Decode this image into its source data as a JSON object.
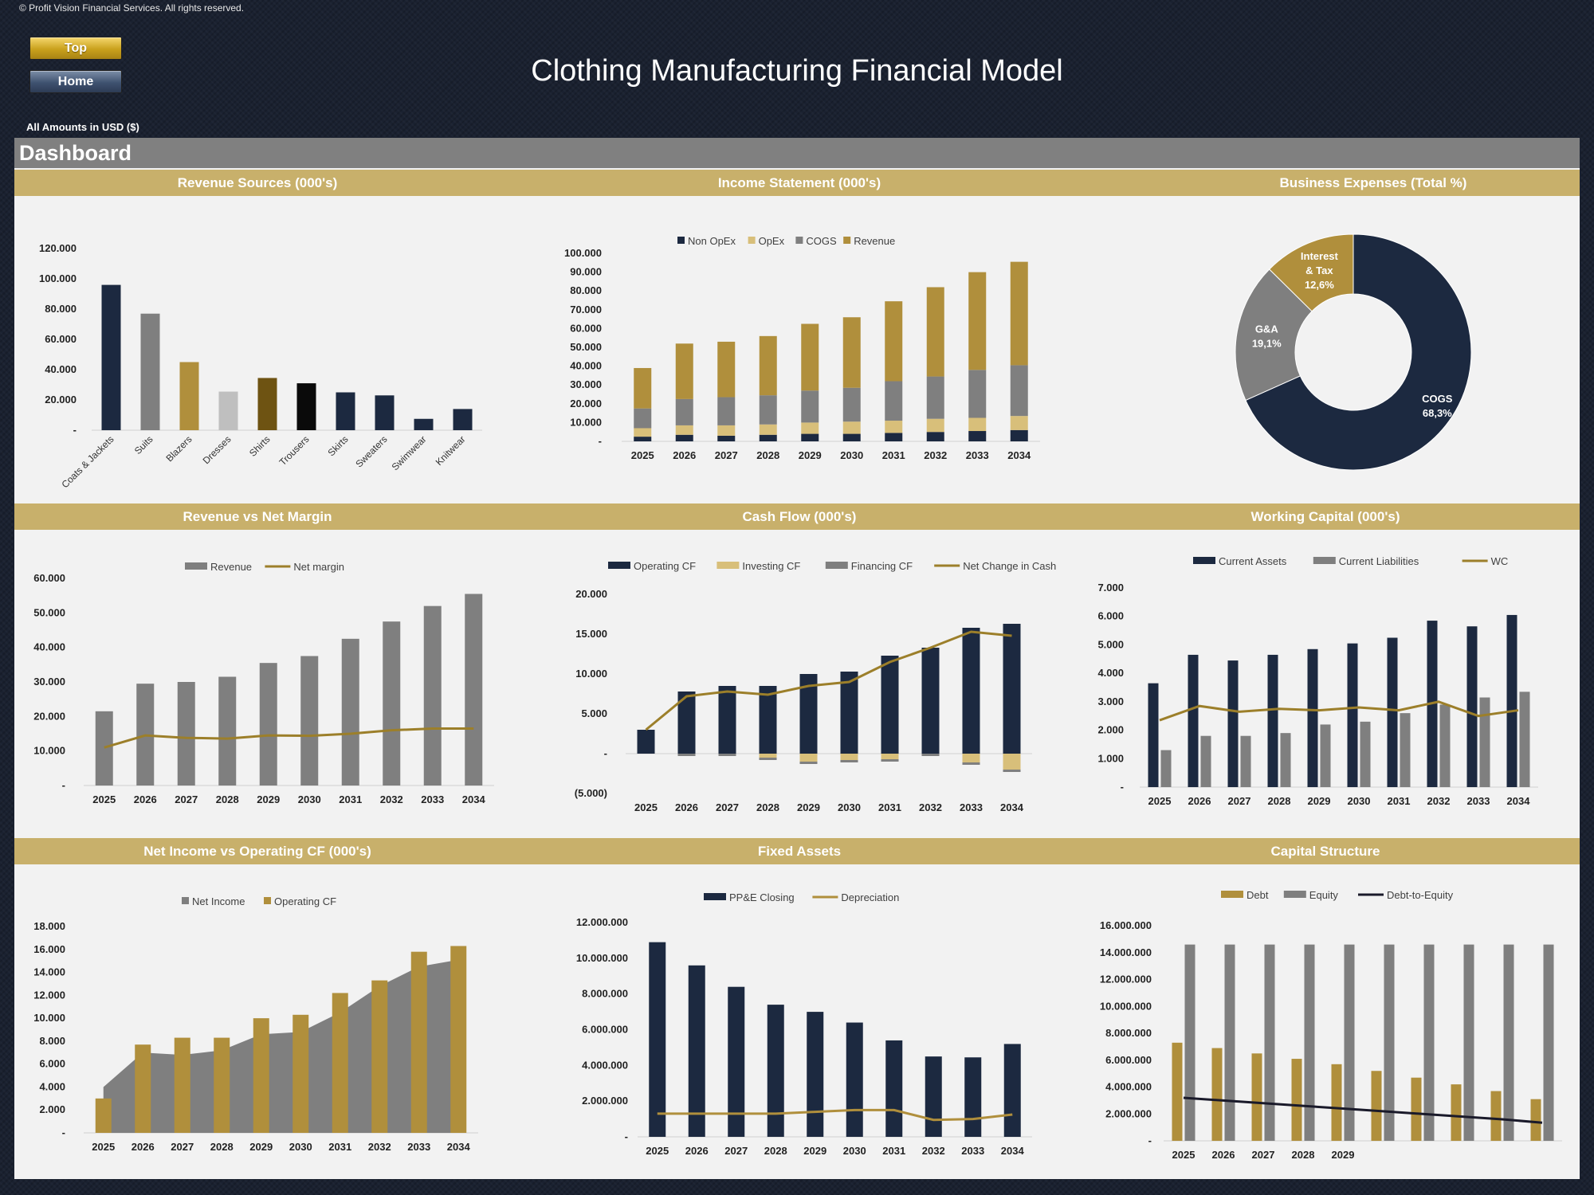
{
  "header": {
    "copyright": "© Profit Vision Financial Services. All rights reserved.",
    "top_button": "Top",
    "home_button": "Home",
    "title": "Clothing Manufacturing Financial Model",
    "units": "All Amounts in  USD ($)",
    "dashboard_label": "Dashboard"
  },
  "colors": {
    "navy": "#1c2940",
    "gold": "#b08f3c",
    "gray": "#7f7f7f",
    "lightgold": "#d8bf7a",
    "black": "#0a0a0a",
    "silver": "#bfbfbf",
    "brown": "#6e5312",
    "banner": "#c8b06b"
  },
  "chart_data": [
    {
      "id": "revenue_sources",
      "type": "bar",
      "title": "Revenue Sources (000's)",
      "categories": [
        "Coats & Jackets",
        "Suits",
        "Blazers",
        "Dresses",
        "Shirts",
        "Trousers",
        "Skirts",
        "Sweaters",
        "Swimwear",
        "Knitwear"
      ],
      "values": [
        96000,
        77000,
        45000,
        25500,
        34500,
        31000,
        25000,
        23000,
        7500,
        14000
      ],
      "bar_colors": [
        "#1c2940",
        "#7f7f7f",
        "#b08f3c",
        "#bfbfbf",
        "#6e5312",
        "#0a0a0a",
        "#1c2940",
        "#1c2940",
        "#1c2940",
        "#1c2940"
      ],
      "ylim": [
        0,
        120000
      ],
      "yticks": [
        "-",
        "20.000",
        "40.000",
        "60.000",
        "80.000",
        "100.000",
        "120.000"
      ]
    },
    {
      "id": "income_statement",
      "type": "bar",
      "stacked": true,
      "title": "Income Statement (000's)",
      "categories": [
        "2025",
        "2026",
        "2027",
        "2028",
        "2029",
        "2030",
        "2031",
        "2032",
        "2033",
        "2034"
      ],
      "series": [
        {
          "name": "Non OpEx",
          "color": "#1c2940",
          "values": [
            2500,
            3500,
            3000,
            3500,
            4000,
            4000,
            4500,
            5000,
            5500,
            6000
          ]
        },
        {
          "name": "OpEx",
          "color": "#d8bf7a",
          "values": [
            4500,
            5000,
            5500,
            5500,
            6000,
            6500,
            6500,
            7000,
            7000,
            7500
          ]
        },
        {
          "name": "COGS",
          "color": "#7f7f7f",
          "values": [
            10500,
            14000,
            15000,
            15500,
            17000,
            18000,
            21000,
            22500,
            25500,
            27000
          ]
        },
        {
          "name": "Revenue",
          "color": "#b08f3c",
          "values": [
            21500,
            29500,
            29500,
            31500,
            35500,
            37500,
            42500,
            47500,
            52000,
            55000
          ]
        }
      ],
      "ylim": [
        0,
        100000
      ],
      "yticks": [
        "-",
        "10.000",
        "20.000",
        "30.000",
        "40.000",
        "50.000",
        "60.000",
        "70.000",
        "80.000",
        "90.000",
        "100.000"
      ]
    },
    {
      "id": "business_expenses",
      "type": "pie",
      "donut": true,
      "title": "Business Expenses (Total %)",
      "slices": [
        {
          "name": "COGS",
          "value": 68.3,
          "label": "68,3%",
          "color": "#1c2940"
        },
        {
          "name": "G&A",
          "value": 19.1,
          "label": "19,1%",
          "color": "#7f7f7f"
        },
        {
          "name": "Interest & Tax",
          "value": 12.6,
          "label": "12,6%",
          "color": "#b08f3c"
        }
      ]
    },
    {
      "id": "revenue_vs_net_margin",
      "type": "bar",
      "title": "Revenue vs Net Margin",
      "categories": [
        "2025",
        "2026",
        "2027",
        "2028",
        "2029",
        "2030",
        "2031",
        "2032",
        "2033",
        "2034"
      ],
      "series": [
        {
          "name": "Revenue",
          "kind": "bar",
          "color": "#7f7f7f",
          "values": [
            21500,
            29500,
            30000,
            31500,
            35500,
            37500,
            42500,
            47500,
            52000,
            55500
          ]
        },
        {
          "name": "Net margin",
          "kind": "line",
          "color": "#9c7f2a",
          "values": [
            11000,
            14500,
            13800,
            13600,
            14500,
            14400,
            15000,
            16000,
            16500,
            16500
          ]
        }
      ],
      "ylim": [
        0,
        60000
      ],
      "yticks": [
        "-",
        "10.000",
        "20.000",
        "30.000",
        "40.000",
        "50.000",
        "60.000"
      ]
    },
    {
      "id": "cash_flow",
      "type": "bar",
      "title": "Cash Flow (000's)",
      "categories": [
        "2025",
        "2026",
        "2027",
        "2028",
        "2029",
        "2030",
        "2031",
        "2032",
        "2033",
        "2034"
      ],
      "series": [
        {
          "name": "Operating CF",
          "kind": "bar",
          "color": "#1c2940",
          "values": [
            3000,
            7800,
            8500,
            8500,
            10000,
            10300,
            12300,
            13300,
            15800,
            16300
          ]
        },
        {
          "name": "Investing CF",
          "kind": "bar",
          "color": "#d8bf7a",
          "values": [
            0,
            0,
            0,
            -500,
            -1000,
            -800,
            -700,
            0,
            -1100,
            -2000
          ]
        },
        {
          "name": "Financing CF",
          "kind": "bar",
          "color": "#7f7f7f",
          "values": [
            0,
            -300,
            -300,
            -300,
            -300,
            -300,
            -300,
            -300,
            -300,
            -300
          ]
        },
        {
          "name": "Net Change in Cash",
          "kind": "line",
          "color": "#9c7f2a",
          "values": [
            3000,
            7200,
            7800,
            7400,
            8500,
            9000,
            11500,
            13300,
            15300,
            14800
          ]
        }
      ],
      "ylim": [
        -5000,
        20000
      ],
      "yticks": [
        "(5.000)",
        "-",
        "5.000",
        "10.000",
        "15.000",
        "20.000"
      ]
    },
    {
      "id": "working_capital",
      "type": "bar",
      "title": "Working Capital (000's)",
      "categories": [
        "2025",
        "2026",
        "2027",
        "2028",
        "2029",
        "2030",
        "2031",
        "2032",
        "2033",
        "2034"
      ],
      "series": [
        {
          "name": "Current Assets",
          "kind": "bar",
          "color": "#1c2940",
          "values": [
            3650,
            4650,
            4450,
            4650,
            4850,
            5050,
            5250,
            5850,
            5650,
            6050
          ]
        },
        {
          "name": "Current Liabilities",
          "kind": "bar",
          "color": "#7f7f7f",
          "values": [
            1300,
            1800,
            1800,
            1900,
            2200,
            2300,
            2600,
            2900,
            3150,
            3350
          ]
        },
        {
          "name": "WC",
          "kind": "line",
          "color": "#9c7f2a",
          "values": [
            2350,
            2850,
            2650,
            2750,
            2700,
            2800,
            2700,
            3000,
            2500,
            2700
          ]
        }
      ],
      "ylim": [
        0,
        7000
      ],
      "yticks": [
        "-",
        "1.000",
        "2.000",
        "3.000",
        "4.000",
        "5.000",
        "6.000",
        "7.000"
      ]
    },
    {
      "id": "net_income_vs_ocf",
      "type": "area",
      "title": "Net Income vs Operating CF (000's)",
      "categories": [
        "2025",
        "2026",
        "2027",
        "2028",
        "2029",
        "2030",
        "2031",
        "2032",
        "2033",
        "2034"
      ],
      "series": [
        {
          "name": "Net Income",
          "kind": "area",
          "color": "#7f7f7f",
          "values": [
            4000,
            7000,
            6800,
            7200,
            8600,
            8800,
            10500,
            12800,
            14500,
            15100
          ]
        },
        {
          "name": "Operating CF",
          "kind": "bar",
          "color": "#b08f3c",
          "values": [
            3000,
            7700,
            8300,
            8300,
            10000,
            10300,
            12200,
            13300,
            15800,
            16300
          ]
        }
      ],
      "ylim": [
        0,
        18000
      ],
      "yticks": [
        "-",
        "2.000",
        "4.000",
        "6.000",
        "8.000",
        "10.000",
        "12.000",
        "14.000",
        "16.000",
        "18.000"
      ]
    },
    {
      "id": "fixed_assets",
      "type": "bar",
      "title": "Fixed Assets",
      "categories": [
        "2025",
        "2026",
        "2027",
        "2028",
        "2029",
        "2030",
        "2031",
        "2032",
        "2033",
        "2034"
      ],
      "series": [
        {
          "name": "PP&E Closing",
          "kind": "bar",
          "color": "#1c2940",
          "values": [
            10900000,
            9600000,
            8400000,
            7400000,
            7000000,
            6400000,
            5400000,
            4500000,
            4450000,
            5200000
          ]
        },
        {
          "name": "Depreciation",
          "kind": "line",
          "color": "#b08f3c",
          "values": [
            1300000,
            1300000,
            1300000,
            1300000,
            1400000,
            1500000,
            1500000,
            950000,
            1000000,
            1250000
          ]
        }
      ],
      "ylim": [
        0,
        12000000
      ],
      "yticks": [
        "-",
        "2.000.000",
        "4.000.000",
        "6.000.000",
        "8.000.000",
        "10.000.000",
        "12.000.000"
      ]
    },
    {
      "id": "capital_structure",
      "type": "bar",
      "title": "Capital Structure",
      "categories": [
        "2025",
        "2026",
        "2027",
        "2028",
        "2029",
        "",
        "",
        "",
        "",
        ""
      ],
      "series": [
        {
          "name": "Debt",
          "kind": "bar",
          "color": "#b08f3c",
          "values": [
            7300000,
            6900000,
            6500000,
            6100000,
            5700000,
            5200000,
            4700000,
            4200000,
            3700000,
            3100000
          ]
        },
        {
          "name": "Equity",
          "kind": "bar",
          "color": "#7f7f7f",
          "values": [
            14600000,
            14600000,
            14600000,
            14600000,
            14600000,
            14600000,
            14600000,
            14600000,
            14600000,
            14600000
          ]
        },
        {
          "name": "Debt-to-Equity",
          "kind": "line",
          "color": "#1a1a2a",
          "values": [
            3200000,
            3000000,
            2800000,
            2600000,
            2400000,
            2200000,
            2000000,
            1800000,
            1600000,
            1350000
          ]
        }
      ],
      "ylim": [
        0,
        16000000
      ],
      "yticks": [
        "-",
        "2.000.000",
        "4.000.000",
        "6.000.000",
        "8.000.000",
        "10.000.000",
        "12.000.000",
        "14.000.000",
        "16.000.000"
      ]
    }
  ]
}
